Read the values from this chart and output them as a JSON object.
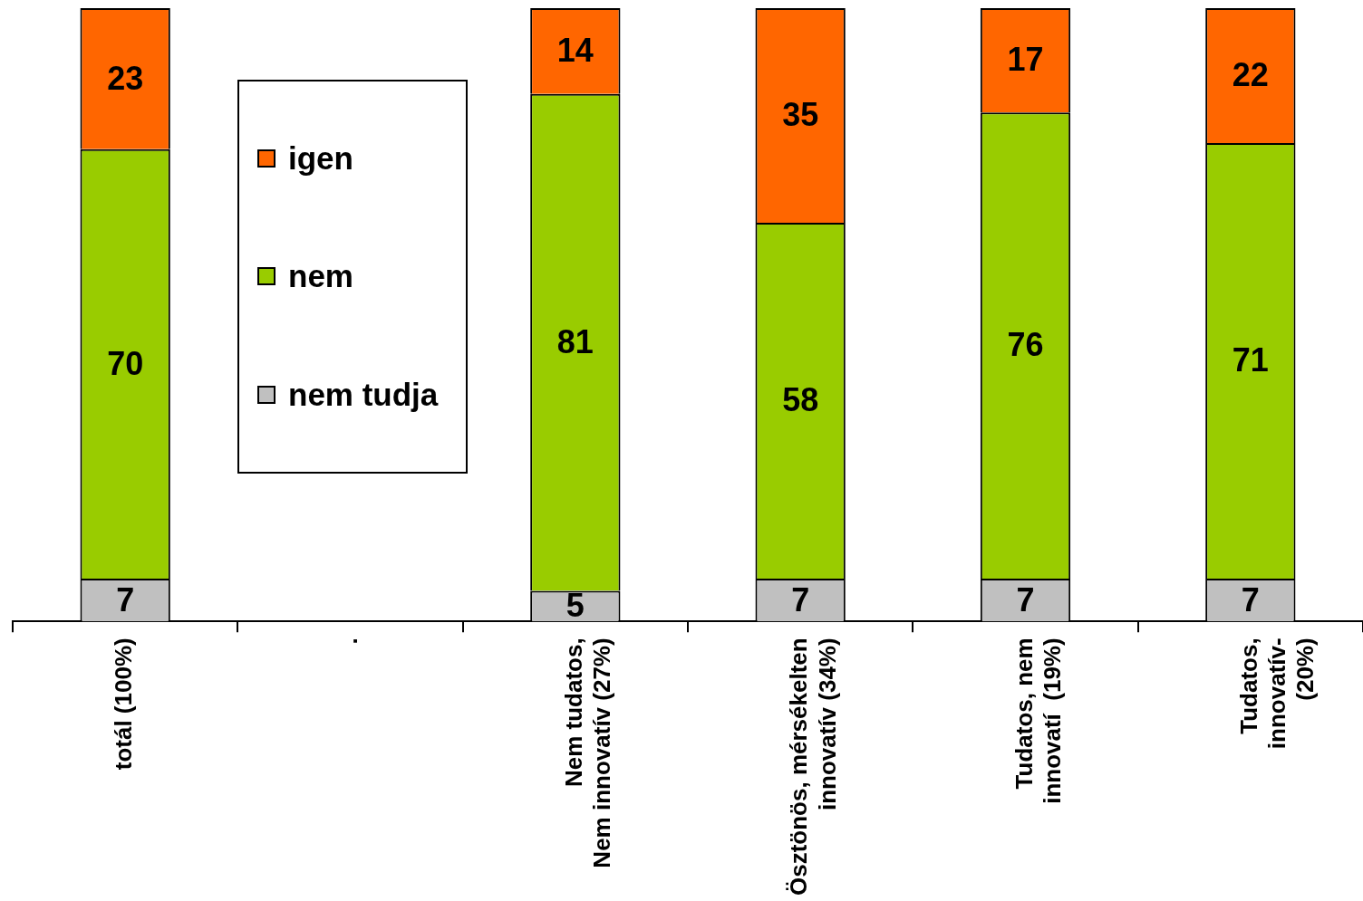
{
  "chart_data": {
    "type": "bar",
    "stacked": true,
    "categories": [
      "totál (100%)",
      ".",
      "Nem tudatos,\nNem innovatív (27%)",
      "Ösztönös, mérsékelten\ninnovatív (34%)",
      "Tudatos, nem\ninnovatí  (19%)",
      "Tudatos,\ninnovatív-\n(20%)"
    ],
    "series": [
      {
        "name": "nem tudja",
        "color": "#c0c0c0",
        "values": [
          7,
          null,
          5,
          7,
          7,
          7
        ]
      },
      {
        "name": "nem",
        "color": "#99cc00",
        "values": [
          70,
          null,
          81,
          58,
          76,
          71
        ]
      },
      {
        "name": "igen",
        "color": "#ff6600",
        "values": [
          23,
          null,
          14,
          35,
          17,
          22
        ]
      }
    ],
    "ylim": [
      0,
      100
    ],
    "data_labels": true,
    "grid": false,
    "legend": "top left",
    "tick_labels": "x"
  }
}
